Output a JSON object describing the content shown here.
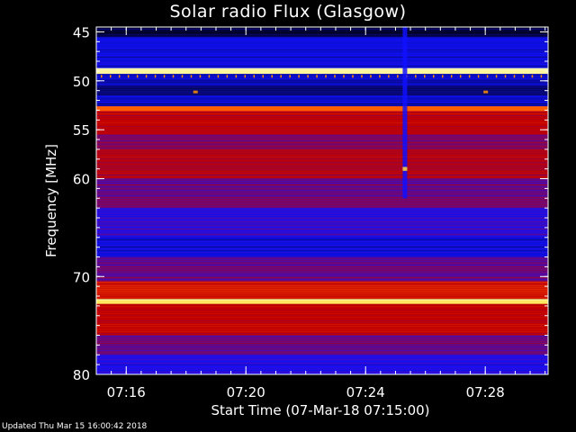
{
  "chart_data": {
    "type": "heatmap",
    "title": "Solar radio Flux (Glasgow)",
    "xlabel": "Start Time (07-Mar-18 07:15:00)",
    "ylabel": "Frequency [MHz]",
    "x_range_minutes": [
      15.0,
      30.1
    ],
    "y_range_mhz": [
      44.5,
      80
    ],
    "x_ticks": [
      {
        "value": 16,
        "label": "07:16"
      },
      {
        "value": 20,
        "label": "07:20"
      },
      {
        "value": 24,
        "label": "07:24"
      },
      {
        "value": 28,
        "label": "07:28"
      }
    ],
    "y_ticks": [
      {
        "value": 45,
        "label": "45"
      },
      {
        "value": 50,
        "label": "50"
      },
      {
        "value": 55,
        "label": "55"
      },
      {
        "value": 60,
        "label": "60"
      },
      {
        "value": 70,
        "label": "70"
      },
      {
        "value": 80,
        "label": "80"
      }
    ],
    "colorscale": [
      "#000000",
      "#1010ff",
      "#c00000",
      "#ff5000",
      "#ffd000",
      "#ffffc8"
    ],
    "frequency_bands": [
      {
        "f0": 44.5,
        "f1": 45.5,
        "level": 0.05
      },
      {
        "f0": 45.5,
        "f1": 48.7,
        "level": 0.17
      },
      {
        "f0": 48.7,
        "f1": 49.3,
        "level": 0.95
      },
      {
        "f0": 49.3,
        "f1": 50.5,
        "level": 0.14
      },
      {
        "f0": 50.5,
        "f1": 51.5,
        "level": 0.1
      },
      {
        "f0": 51.5,
        "f1": 52.6,
        "level": 0.15
      },
      {
        "f0": 52.6,
        "f1": 53.1,
        "level": 0.62
      },
      {
        "f0": 53.1,
        "f1": 55.5,
        "level": 0.4
      },
      {
        "f0": 55.5,
        "f1": 57,
        "level": 0.32
      },
      {
        "f0": 57,
        "f1": 60,
        "level": 0.38
      },
      {
        "f0": 60,
        "f1": 63,
        "level": 0.3
      },
      {
        "f0": 63,
        "f1": 66,
        "level": 0.24
      },
      {
        "f0": 66,
        "f1": 68,
        "level": 0.17
      },
      {
        "f0": 68,
        "f1": 70.5,
        "level": 0.3
      },
      {
        "f0": 70.5,
        "f1": 72.3,
        "level": 0.45
      },
      {
        "f0": 72.3,
        "f1": 72.8,
        "level": 0.9
      },
      {
        "f0": 72.8,
        "f1": 76,
        "level": 0.4
      },
      {
        "f0": 76,
        "f1": 78,
        "level": 0.3
      },
      {
        "f0": 78,
        "f1": 80,
        "level": 0.22
      }
    ],
    "bursts": [
      {
        "t": 25.3,
        "f0": 44.5,
        "f1": 62.0,
        "level": 0.2
      },
      {
        "t": 25.3,
        "f0": 58.8,
        "f1": 59.2,
        "level": 0.85
      },
      {
        "t": 18.3,
        "f0": 51.0,
        "f1": 51.2,
        "level": 0.7
      },
      {
        "t": 28.0,
        "f0": 51.0,
        "f1": 51.2,
        "level": 0.7
      }
    ]
  },
  "footer": "Updated Thu Mar 15 16:00:42 2018"
}
